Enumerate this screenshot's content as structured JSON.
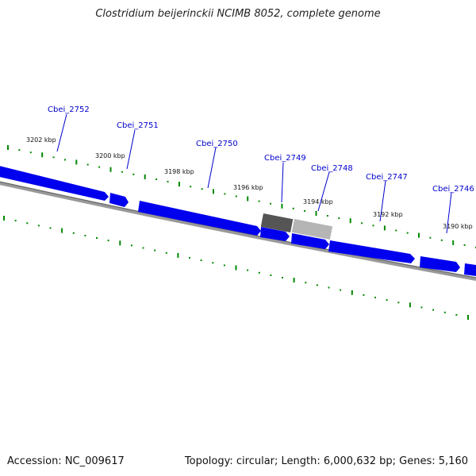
{
  "title": "Clostridium beijerinckii NCIMB 8052, complete genome",
  "footer": {
    "accession": "Accession: NC_009617",
    "stats": "Topology: circular; Length: 6,000,632 bp; Genes: 5,160"
  },
  "colors": {
    "gene": "#0000ee",
    "gene_selected_dark": "#555555",
    "gene_selected_light": "#aaaaaa",
    "backbone": "#888888",
    "tick": "#008800",
    "label": "#0000cc"
  },
  "genes": [
    "Cbei_2752",
    "Cbei_2751",
    "Cbei_2750",
    "Cbei_2749",
    "Cbei_2748",
    "Cbei_2747",
    "Cbei_2746"
  ],
  "kbp_labels": [
    "3202 kbp",
    "3200 kbp",
    "3198 kbp",
    "3196 kbp",
    "3194 kbp",
    "3192 kbp",
    "3190 kbp"
  ]
}
